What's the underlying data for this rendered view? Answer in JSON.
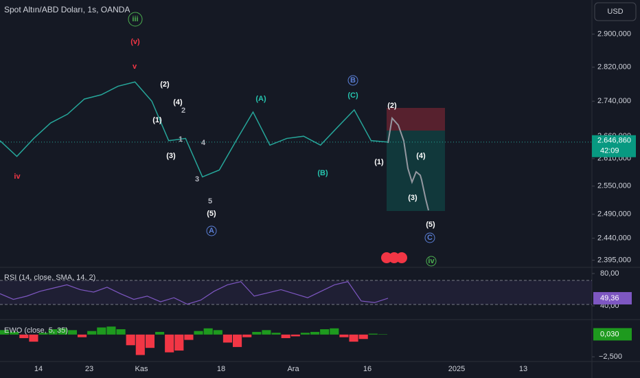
{
  "header": {
    "title": "Spot Altın/ABD Doları, 1s, OANDA",
    "currency": "USD"
  },
  "chart_data": [
    {
      "type": "line",
      "log_scale": true,
      "color": "#26a69a",
      "ylim": [
        2382,
        2985
      ],
      "yticks": [
        {
          "value": 2900,
          "label": "2.900,000"
        },
        {
          "value": 2820,
          "label": "2.820,000"
        },
        {
          "value": 2740,
          "label": "2.740,000"
        },
        {
          "value": 2660,
          "label": "2.660,000"
        },
        {
          "value": 2610,
          "label": "2.610,000"
        },
        {
          "value": 2550,
          "label": "2.550,000"
        },
        {
          "value": 2490,
          "label": "2.490,000"
        },
        {
          "value": 2440,
          "label": "2.440,000"
        },
        {
          "value": 2395,
          "label": "2.395,000"
        }
      ],
      "values": [
        2650,
        2615,
        2655,
        2690,
        2710,
        2745,
        2755,
        2775,
        2785,
        2740,
        2650,
        2655,
        2570,
        2585,
        2650,
        2715,
        2640,
        2655,
        2660,
        2640,
        2680,
        2720,
        2650,
        2646.86
      ],
      "last_price": {
        "value": 2646.86,
        "label": "2.646,860"
      },
      "countdown": "42:09",
      "x_labels": [
        "14",
        "23",
        "Kas",
        "18",
        "Ara",
        "16",
        "2025",
        "13"
      ],
      "annotations": [
        {
          "text": "iii",
          "color": "#4caf50",
          "circled": true
        },
        {
          "text": "(v)",
          "color": "#f23645"
        },
        {
          "text": "v",
          "color": "#f23645"
        },
        {
          "text": "iv",
          "color": "#f23645"
        },
        {
          "text": "(2)",
          "color": "#ffffff"
        },
        {
          "text": "(4)",
          "color": "#ffffff"
        },
        {
          "text": "2",
          "color": "#b2b5be"
        },
        {
          "text": "(1)",
          "color": "#ffffff"
        },
        {
          "text": "1",
          "color": "#b2b5be"
        },
        {
          "text": "4",
          "color": "#b2b5be"
        },
        {
          "text": "(3)",
          "color": "#ffffff"
        },
        {
          "text": "3",
          "color": "#b2b5be"
        },
        {
          "text": "5",
          "color": "#b2b5be"
        },
        {
          "text": "(5)",
          "color": "#ffffff"
        },
        {
          "text": "A",
          "color": "#5b7fd6",
          "circled": true
        },
        {
          "text": "(A)",
          "color": "#26c6b0"
        },
        {
          "text": "B",
          "color": "#5b7fd6",
          "circled": true
        },
        {
          "text": "(C)",
          "color": "#26c6b0"
        },
        {
          "text": "(B)",
          "color": "#26c6b0"
        },
        {
          "text": "(2)",
          "color": "#ffffff"
        },
        {
          "text": "(4)",
          "color": "#ffffff"
        },
        {
          "text": "(1)",
          "color": "#ffffff"
        },
        {
          "text": "(3)",
          "color": "#ffffff"
        },
        {
          "text": "(5)",
          "color": "#ffffff"
        },
        {
          "text": "C",
          "color": "#5b7fd6",
          "circled": true
        },
        {
          "text": "iv",
          "color": "#4caf50",
          "circled": true
        }
      ]
    },
    {
      "type": "line",
      "title": "RSI (14, close, SMA, 14, 2)",
      "color": "#7e57c2",
      "ylim": [
        27.2,
        86.8
      ],
      "yticks": [
        {
          "value": 80,
          "label": "80,00"
        },
        {
          "value": 40,
          "label": "40,00"
        }
      ],
      "values": [
        55,
        48,
        52,
        58,
        62,
        66,
        60,
        57,
        63,
        55,
        48,
        52,
        45,
        50,
        42,
        47,
        58,
        66,
        70,
        52,
        56,
        60,
        55,
        50,
        58,
        66,
        70,
        46,
        44,
        49.36
      ],
      "last_value": {
        "value": 49.36,
        "label": "49,36"
      }
    },
    {
      "type": "bar",
      "title": "EWO (close, 5, 35)",
      "up_color": "#1e9a1e",
      "down_color": "#f23645",
      "ylim": [
        -2.8,
        1.3
      ],
      "yticks": [
        {
          "value": -2.5,
          "label": "−2,500"
        }
      ],
      "values": [
        0.5,
        0.3,
        -0.4,
        -0.8,
        0.2,
        0.6,
        0.7,
        0.5,
        -0.3,
        0.4,
        0.8,
        0.9,
        0.6,
        -1.2,
        -2.3,
        -1.5,
        0.3,
        -2.0,
        -1.8,
        -0.6,
        0.4,
        0.7,
        0.5,
        -0.9,
        -1.4,
        -0.3,
        0.3,
        0.5,
        0.2,
        -0.4,
        -0.2,
        0.2,
        0.3,
        0.6,
        0.7,
        -0.3,
        -0.8,
        -0.5,
        0.1,
        0.03
      ],
      "last_value": {
        "value": 0.03,
        "label": "0,030"
      }
    }
  ]
}
